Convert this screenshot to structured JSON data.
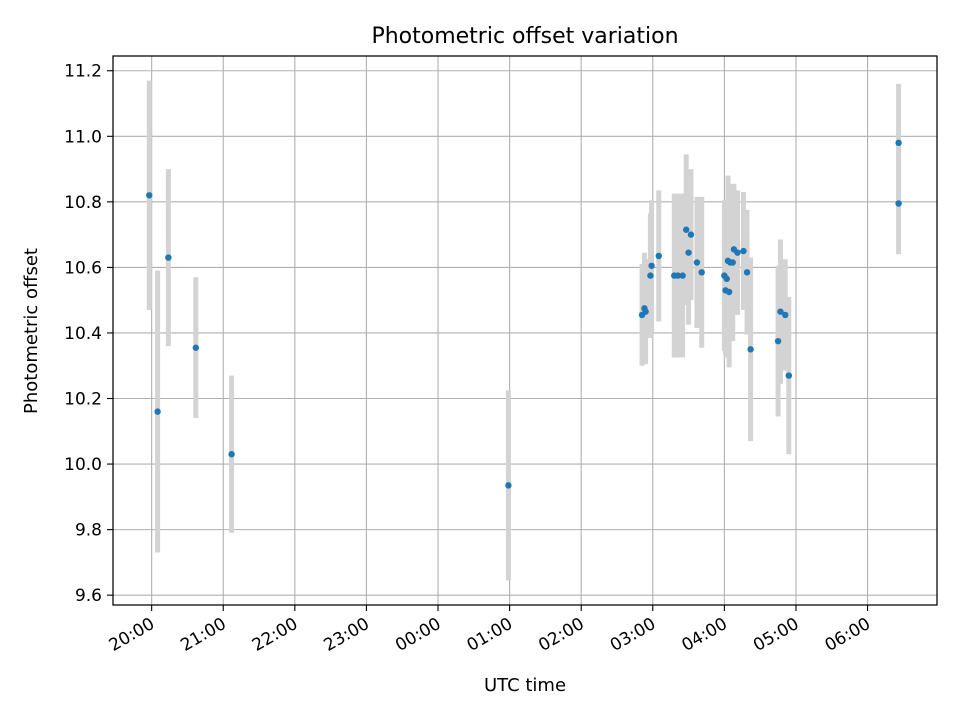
{
  "chart_data": {
    "type": "scatter",
    "title": "Photometric offset variation",
    "xlabel": "UTC time",
    "ylabel": "Photometric offset",
    "x_axis_type": "time",
    "x_ticks": [
      "20:00",
      "21:00",
      "22:00",
      "23:00",
      "00:00",
      "01:00",
      "02:00",
      "03:00",
      "04:00",
      "05:00",
      "06:00"
    ],
    "x_tick_hours_from_first": [
      0,
      1,
      2,
      3,
      4,
      5,
      6,
      7,
      8,
      9,
      10
    ],
    "xlim_hours_from_first": [
      -0.54,
      10.97
    ],
    "ylim": [
      9.57,
      11.245
    ],
    "y_ticks": [
      9.6,
      9.8,
      10.0,
      10.2,
      10.4,
      10.6,
      10.8,
      11.0,
      11.2
    ],
    "grid": true,
    "colors": {
      "point": "#1f77b4",
      "errorbar": "#d3d3d3",
      "grid": "#b0b0b0"
    },
    "series": [
      {
        "points": [
          {
            "time": "19:58",
            "y": 10.82,
            "err": 0.35
          },
          {
            "time": "20:05",
            "y": 10.16,
            "err": 0.43
          },
          {
            "time": "20:14",
            "y": 10.63,
            "err": 0.27
          },
          {
            "time": "20:37",
            "y": 10.355,
            "err": 0.215
          },
          {
            "time": "21:07",
            "y": 10.03,
            "err": 0.24
          },
          {
            "time": "00:59",
            "y": 9.935,
            "err": 0.29
          },
          {
            "time": "02:51",
            "y": 10.455,
            "err": 0.155
          },
          {
            "time": "02:53",
            "y": 10.475,
            "err": 0.17
          },
          {
            "time": "02:54",
            "y": 10.465,
            "err": 0.16
          },
          {
            "time": "02:58",
            "y": 10.575,
            "err": 0.19
          },
          {
            "time": "02:59",
            "y": 10.605,
            "err": 0.2
          },
          {
            "time": "03:05",
            "y": 10.635,
            "err": 0.2
          },
          {
            "time": "03:18",
            "y": 10.575,
            "err": 0.25
          },
          {
            "time": "03:21",
            "y": 10.575,
            "err": 0.25
          },
          {
            "time": "03:25",
            "y": 10.575,
            "err": 0.25
          },
          {
            "time": "03:28",
            "y": 10.715,
            "err": 0.23
          },
          {
            "time": "03:30",
            "y": 10.645,
            "err": 0.22
          },
          {
            "time": "03:32",
            "y": 10.7,
            "err": 0.2
          },
          {
            "time": "03:37",
            "y": 10.615,
            "err": 0.2
          },
          {
            "time": "03:41",
            "y": 10.585,
            "err": 0.23
          },
          {
            "time": "04:00",
            "y": 10.575,
            "err": 0.23
          },
          {
            "time": "04:01",
            "y": 10.53,
            "err": 0.2
          },
          {
            "time": "04:02",
            "y": 10.565,
            "err": 0.24
          },
          {
            "time": "04:03",
            "y": 10.62,
            "err": 0.26
          },
          {
            "time": "04:04",
            "y": 10.525,
            "err": 0.23
          },
          {
            "time": "04:05",
            "y": 10.615,
            "err": 0.24
          },
          {
            "time": "04:07",
            "y": 10.615,
            "err": 0.24
          },
          {
            "time": "04:08",
            "y": 10.655,
            "err": 0.2
          },
          {
            "time": "04:11",
            "y": 10.645,
            "err": 0.19
          },
          {
            "time": "04:16",
            "y": 10.65,
            "err": 0.18
          },
          {
            "time": "04:19",
            "y": 10.585,
            "err": 0.19
          },
          {
            "time": "04:22",
            "y": 10.35,
            "err": 0.28
          },
          {
            "time": "04:45",
            "y": 10.375,
            "err": 0.23
          },
          {
            "time": "04:47",
            "y": 10.465,
            "err": 0.22
          },
          {
            "time": "04:51",
            "y": 10.455,
            "err": 0.17
          },
          {
            "time": "04:54",
            "y": 10.27,
            "err": 0.24
          },
          {
            "time": "06:26",
            "y": 10.98,
            "err": 0.18
          },
          {
            "time": "06:26",
            "y": 10.795,
            "err": 0.155
          }
        ]
      }
    ]
  }
}
